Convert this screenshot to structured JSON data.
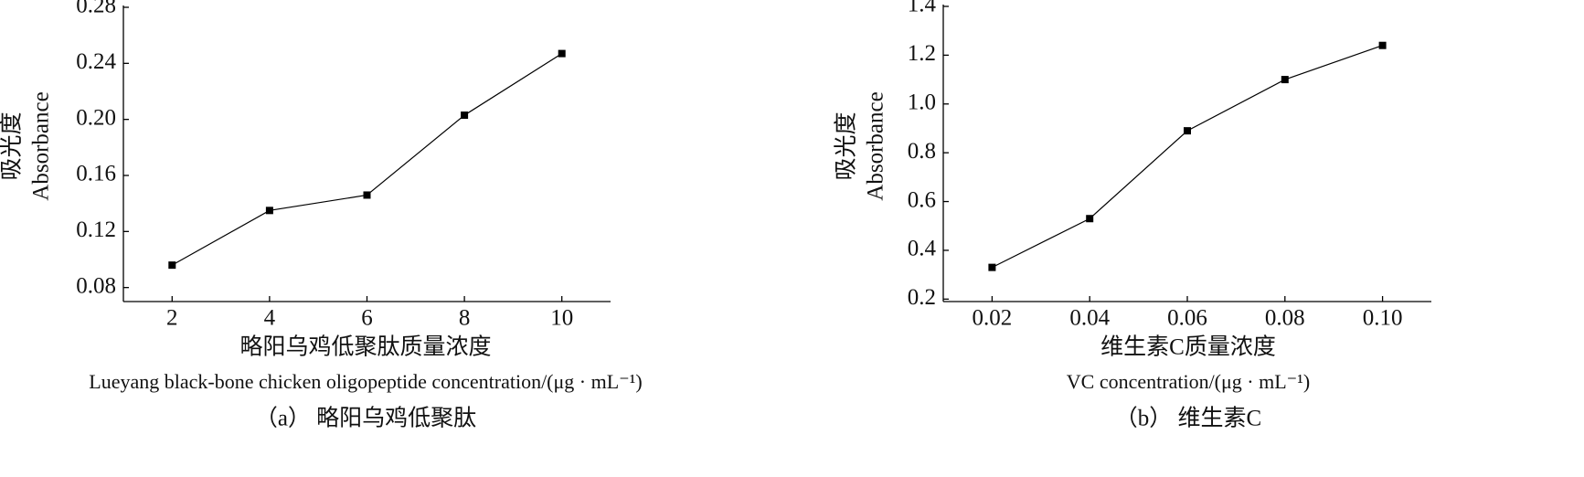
{
  "chart_data": [
    {
      "type": "line",
      "ylabel": [
        "吸光度",
        "Absorbance"
      ],
      "xlabel": [
        "略阳乌鸡低聚肽质量浓度",
        "Lueyang black-bone chicken oligopeptide concentration/(μg · mL⁻¹)",
        "（a） 略阳乌鸡低聚肽"
      ],
      "x": [
        2,
        4,
        6,
        8,
        10
      ],
      "values": [
        0.096,
        0.135,
        0.146,
        0.203,
        0.247
      ],
      "color": "#000000",
      "xlim": [
        1,
        11
      ],
      "xticks": [
        2,
        4,
        6,
        8,
        10
      ],
      "ylim": [
        0.07,
        0.28
      ],
      "yticks": [
        0.08,
        0.12,
        0.16,
        {
          "value": 0.2,
          "label": "0.20"
        },
        0.24,
        0.28
      ]
    },
    {
      "type": "line",
      "ylabel": [
        "吸光度",
        "Absorbance"
      ],
      "xlabel": [
        "维生素C质量浓度",
        "VC concentration/(μg · mL⁻¹)",
        "（b） 维生素C"
      ],
      "x": [
        0.02,
        0.04,
        0.06,
        0.08,
        0.1
      ],
      "values": [
        0.33,
        0.53,
        0.89,
        1.1,
        1.24
      ],
      "color": "#000000",
      "xlim": [
        0.01,
        0.11
      ],
      "xticks": [
        0.02,
        0.04,
        0.06,
        0.08,
        {
          "value": 0.1,
          "label": "0.10"
        }
      ],
      "ylim": [
        0.19,
        1.4
      ],
      "yticks": [
        0.2,
        0.4,
        0.6,
        0.8,
        {
          "value": 1,
          "label": "1.0"
        },
        1.2,
        1.4
      ]
    }
  ]
}
